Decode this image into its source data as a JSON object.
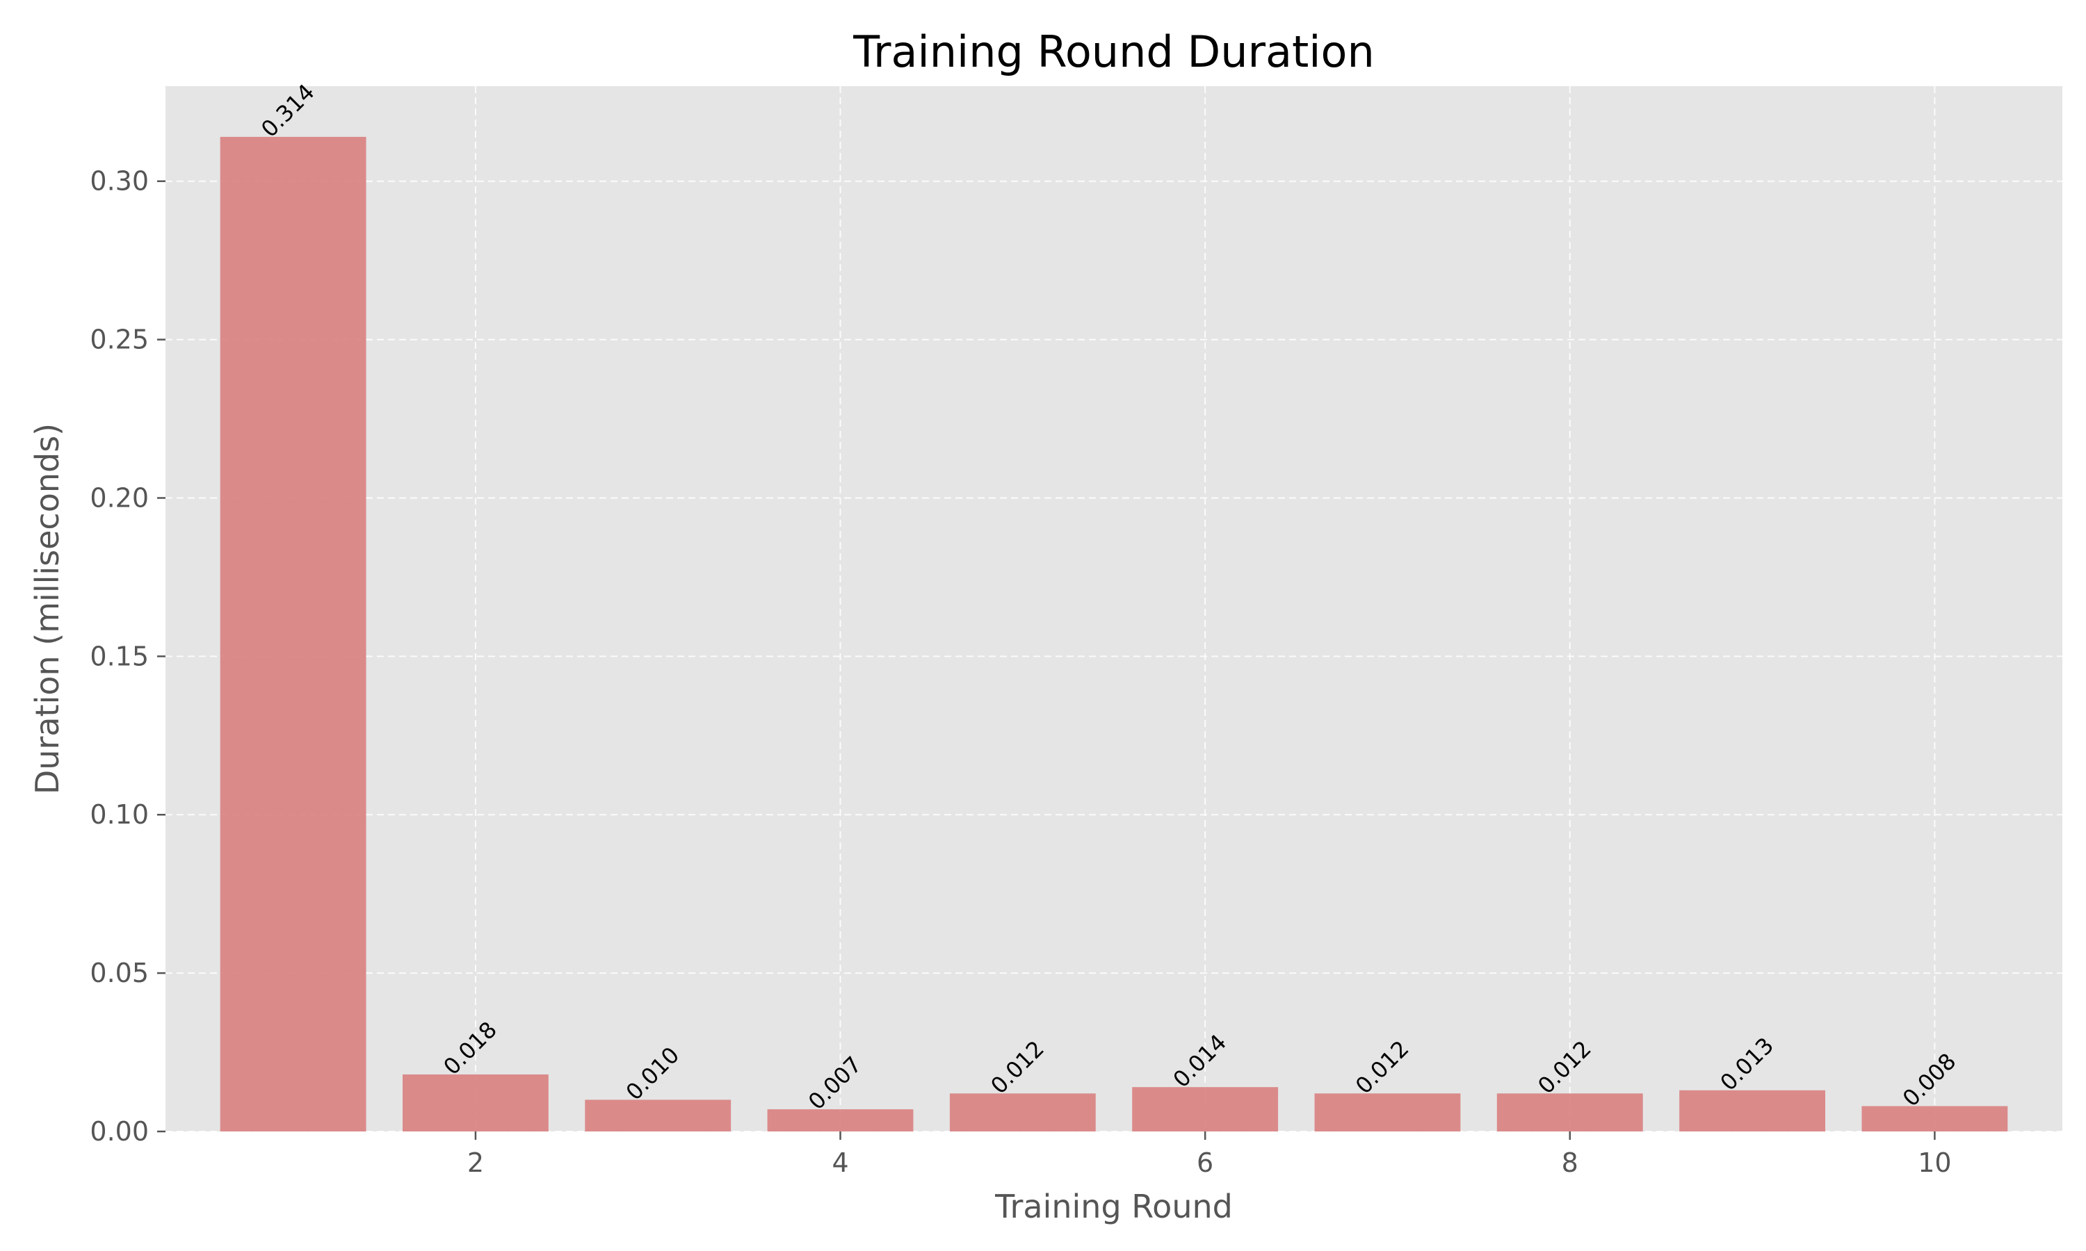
{
  "chart_data": {
    "type": "bar",
    "title": "Training Round Duration",
    "xlabel": "Training Round",
    "ylabel": "Duration (milliseconds)",
    "categories": [
      1,
      2,
      3,
      4,
      5,
      6,
      7,
      8,
      9,
      10
    ],
    "values": [
      0.314,
      0.018,
      0.01,
      0.007,
      0.012,
      0.014,
      0.012,
      0.012,
      0.013,
      0.008
    ],
    "value_labels": [
      "0.314",
      "0.018",
      "0.010",
      "0.007",
      "0.012",
      "0.014",
      "0.012",
      "0.012",
      "0.013",
      "0.008"
    ],
    "xlim": [
      0.3,
      10.7
    ],
    "ylim": [
      0,
      0.33
    ],
    "xticks": [
      2,
      4,
      6,
      8,
      10
    ],
    "xtick_labels": [
      "2",
      "4",
      "6",
      "8",
      "10"
    ],
    "yticks": [
      0.0,
      0.05,
      0.1,
      0.15,
      0.2,
      0.25,
      0.3
    ],
    "ytick_labels": [
      "0.00",
      "0.05",
      "0.10",
      "0.15",
      "0.20",
      "0.25",
      "0.30"
    ],
    "grid": true,
    "bar_color": "#d98080",
    "plot_background": "#e5e5e5",
    "legend": "none"
  }
}
